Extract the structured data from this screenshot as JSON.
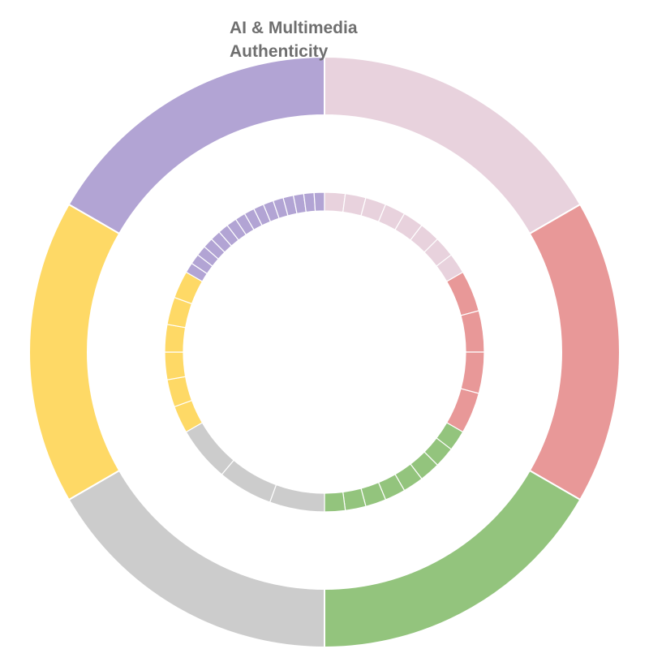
{
  "chart_data": {
    "type": "donut",
    "outer_ring": {
      "categories": [
        "Purple",
        "Pink",
        "Red",
        "Green",
        "Gray",
        "Yellow"
      ],
      "values": [
        1,
        1,
        1,
        1,
        1,
        1
      ],
      "colors": [
        "#b2a4d4",
        "#e8d2dd",
        "#e89898",
        "#93c47d",
        "#cccccc",
        "#fed966"
      ],
      "labels": [
        "AI & Multimedia Authenticity",
        "",
        "",
        "",
        "",
        ""
      ]
    },
    "inner_ring": {
      "segment_counts": [
        16,
        8,
        4,
        8,
        3,
        6
      ],
      "colors": [
        "#b2a4d4",
        "#e8d2dd",
        "#e89898",
        "#93c47d",
        "#cccccc",
        "#fed966"
      ]
    }
  }
}
